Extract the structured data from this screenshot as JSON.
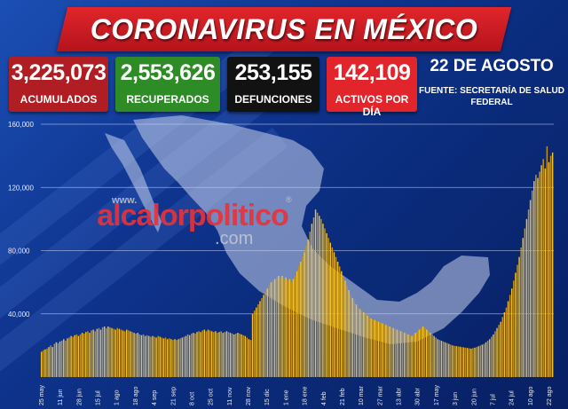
{
  "header": {
    "title": "CORONAVIRUS EN MÉXICO",
    "date": "22 DE AGOSTO",
    "source": "FUENTE: SECRETARÍA DE SALUD FEDERAL"
  },
  "stats": [
    {
      "value": "3,225,073",
      "label": "ACUMULADOS",
      "color": "#b01e23"
    },
    {
      "value": "2,553,626",
      "label": "RECUPERADOS",
      "color": "#2e8c27"
    },
    {
      "value": "253,155",
      "label": "DEFUNCIONES",
      "color": "#121212"
    },
    {
      "value": "142,109",
      "label": "ACTIVOS POR DÍA",
      "color": "#e2242b"
    }
  ],
  "watermark": {
    "www": "www.",
    "main": "alcalorpolitico",
    "com": ".com",
    "reg": "®"
  },
  "colors": {
    "bar": "#f2c230",
    "bar_dark": "#c59418",
    "grid": "#c8d4f0",
    "map": "#c9d2ec"
  },
  "chart_data": {
    "type": "bar",
    "title": "",
    "xlabel": "",
    "ylabel": "",
    "ylim": [
      0,
      160000
    ],
    "yticks": [
      40000,
      80000,
      120000,
      160000
    ],
    "ytick_labels": [
      "40,000",
      "80,000",
      "120,000",
      "160,000"
    ],
    "x_tick_labels": [
      "25 may",
      "11 jun",
      "28 jun",
      "15 jul",
      "1 ago",
      "18 ago",
      "4 sep",
      "21 sep",
      "8 oct",
      "25 oct",
      "11 nov",
      "28 nov",
      "15 dic",
      "1 ene",
      "18 ene",
      "4 feb",
      "21 feb",
      "10 mar",
      "27 mar",
      "13 abr",
      "30 abr",
      "17 may",
      "3 jun",
      "20 jun",
      "7 jul",
      "24 jul",
      "10 ago",
      "22 ago"
    ],
    "values": [
      16000,
      17000,
      17500,
      18000,
      19000,
      20000,
      19000,
      21000,
      22000,
      21500,
      22500,
      23000,
      24000,
      23000,
      24500,
      25000,
      26000,
      25500,
      26500,
      27000,
      26000,
      27000,
      28000,
      27500,
      28500,
      29000,
      28000,
      29500,
      30000,
      29000,
      30500,
      31000,
      30000,
      31500,
      32000,
      31000,
      32000,
      31500,
      31000,
      30500,
      30000,
      31000,
      30500,
      30000,
      29500,
      29000,
      30000,
      29500,
      29000,
      28500,
      28000,
      27500,
      28000,
      27000,
      26500,
      27000,
      26000,
      26500,
      26000,
      25500,
      26000,
      25500,
      25000,
      26000,
      25500,
      25000,
      24500,
      25000,
      24000,
      24500,
      24000,
      23500,
      24000,
      23500,
      24000,
      24500,
      25000,
      25500,
      26000,
      27000,
      26500,
      27500,
      28000,
      27500,
      28500,
      29000,
      28500,
      29500,
      30000,
      29000,
      30000,
      29500,
      29000,
      28500,
      29000,
      28000,
      28500,
      29000,
      28000,
      28500,
      29000,
      28500,
      28000,
      27500,
      27000,
      27500,
      28000,
      27500,
      27000,
      26500,
      26000,
      25000,
      24000,
      23500,
      40000,
      42000,
      44000,
      46000,
      48000,
      50000,
      52000,
      54000,
      56000,
      58000,
      60000,
      61000,
      62000,
      63000,
      64000,
      63000,
      64000,
      62000,
      63000,
      61000,
      62000,
      60000,
      62000,
      64000,
      67000,
      70000,
      73000,
      76000,
      79000,
      83000,
      87000,
      92000,
      97000,
      101000,
      106000,
      104000,
      102000,
      100000,
      97000,
      94000,
      91000,
      88000,
      85000,
      82000,
      79000,
      76000,
      73000,
      70000,
      67000,
      64000,
      61000,
      58000,
      55000,
      52000,
      50000,
      48000,
      46000,
      44000,
      43000,
      42000,
      41000,
      40000,
      39000,
      38000,
      37000,
      36500,
      36000,
      35500,
      35000,
      34500,
      34000,
      33500,
      33000,
      32500,
      32000,
      31500,
      31000,
      30500,
      30000,
      29500,
      29000,
      28500,
      28000,
      27500,
      27000,
      26500,
      26000,
      27000,
      28000,
      29000,
      30000,
      31000,
      32000,
      31000,
      30000,
      29000,
      28000,
      27000,
      26000,
      25000,
      24000,
      23500,
      23000,
      22500,
      22000,
      21500,
      21000,
      20500,
      20000,
      19800,
      19600,
      19400,
      19200,
      19000,
      18800,
      18600,
      18400,
      18200,
      18000,
      18300,
      18600,
      19000,
      19500,
      20000,
      20500,
      21000,
      22000,
      23000,
      24000,
      25500,
      27000,
      29000,
      31000,
      33000,
      35000,
      38000,
      41000,
      44000,
      48000,
      52000,
      56000,
      61000,
      66000,
      71000,
      76000,
      82000,
      88000,
      94000,
      100000,
      106000,
      112000,
      118000,
      124000,
      128000,
      126000,
      130000,
      134000,
      138000,
      132000,
      146000,
      136000,
      140000,
      142109
    ]
  }
}
